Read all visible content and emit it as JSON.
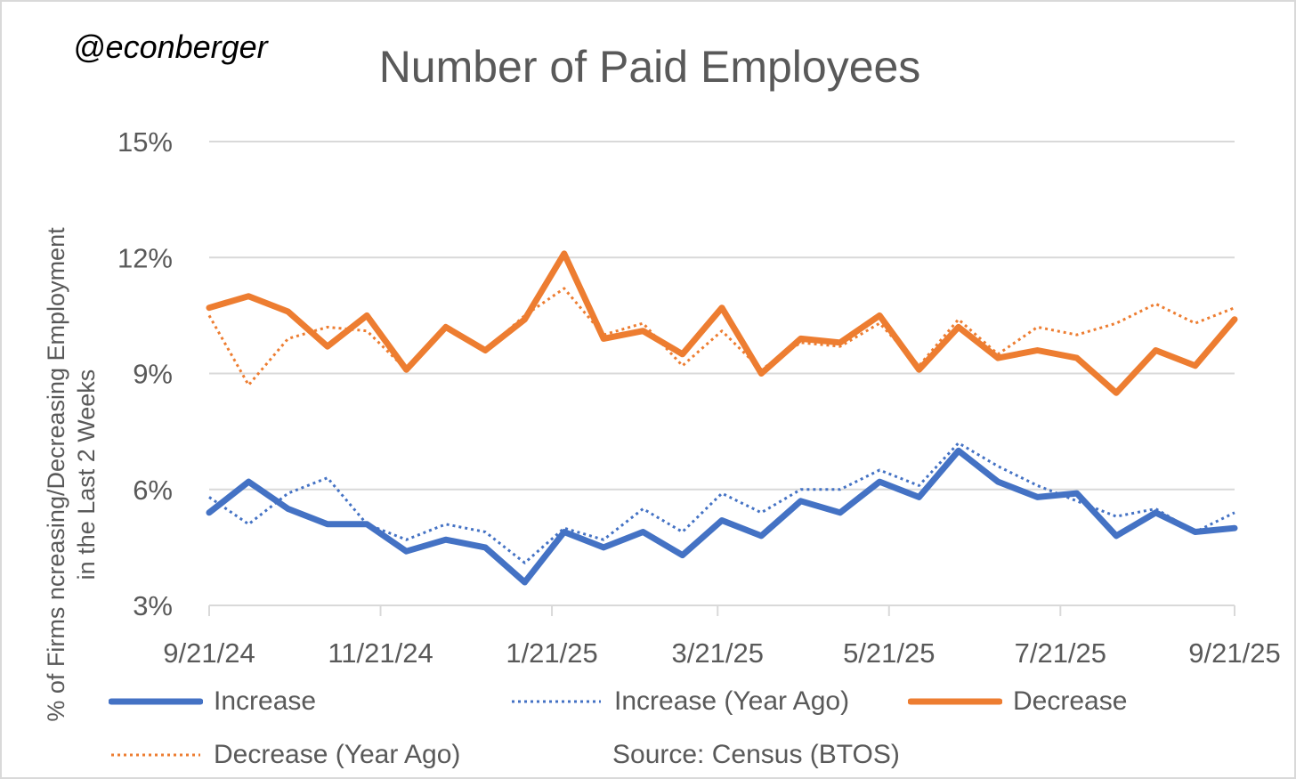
{
  "chart_data": {
    "type": "line",
    "handle": "@econberger",
    "title": "Number of Paid Employees",
    "ylabel_line1": "% of Firms ncreasing/Decreasing Employment",
    "ylabel_line2": "in the Last 2 Weeks",
    "xlabel": "",
    "source": "Source: Census (BTOS)",
    "ylim": [
      3,
      15
    ],
    "yticks": [
      3,
      6,
      9,
      12,
      15
    ],
    "ytick_labels": [
      "3%",
      "6%",
      "9%",
      "12%",
      "15%"
    ],
    "x_start": "9/21/24",
    "x_end": "9/21/25",
    "n_points": 27,
    "xtick_labels": [
      "9/21/24",
      "11/21/24",
      "1/21/25",
      "3/21/25",
      "5/21/25",
      "7/21/25",
      "9/21/25"
    ],
    "xtick_days": [
      0,
      61,
      122,
      181,
      242,
      303,
      365
    ],
    "grid": true,
    "legend_position": "bottom",
    "series": [
      {
        "name": "Increase",
        "color": "#4472C4",
        "style": "solid",
        "values": [
          5.4,
          6.2,
          5.5,
          5.1,
          5.1,
          4.4,
          4.7,
          4.5,
          3.6,
          4.9,
          4.5,
          4.9,
          4.3,
          5.2,
          4.8,
          5.7,
          5.4,
          6.2,
          5.8,
          7.0,
          6.2,
          5.8,
          5.9,
          4.8,
          5.4,
          4.9,
          5.0
        ]
      },
      {
        "name": "Increase (Year Ago)",
        "color": "#4472C4",
        "style": "dotted",
        "values": [
          5.8,
          5.1,
          5.9,
          6.3,
          5.1,
          4.7,
          5.1,
          4.9,
          4.1,
          5.0,
          4.7,
          5.5,
          4.9,
          5.9,
          5.4,
          6.0,
          6.0,
          6.5,
          6.1,
          7.2,
          6.6,
          6.1,
          5.7,
          5.3,
          5.5,
          4.9,
          5.4
        ]
      },
      {
        "name": "Decrease",
        "color": "#ED7D31",
        "style": "solid",
        "values": [
          10.7,
          11.0,
          10.6,
          9.7,
          10.5,
          9.1,
          10.2,
          9.6,
          10.4,
          12.1,
          9.9,
          10.1,
          9.5,
          10.7,
          9.0,
          9.9,
          9.8,
          10.5,
          9.1,
          10.2,
          9.4,
          9.6,
          9.4,
          8.5,
          9.6,
          9.2,
          10.4
        ]
      },
      {
        "name": "Decrease (Year Ago)",
        "color": "#ED7D31",
        "style": "dotted",
        "values": [
          10.5,
          8.7,
          9.9,
          10.2,
          10.1,
          9.1,
          10.2,
          9.6,
          10.5,
          11.2,
          10.0,
          10.3,
          9.2,
          10.1,
          9.1,
          9.8,
          9.7,
          10.3,
          9.2,
          10.4,
          9.5,
          10.2,
          10.0,
          10.3,
          10.8,
          10.3,
          10.7
        ]
      }
    ]
  }
}
